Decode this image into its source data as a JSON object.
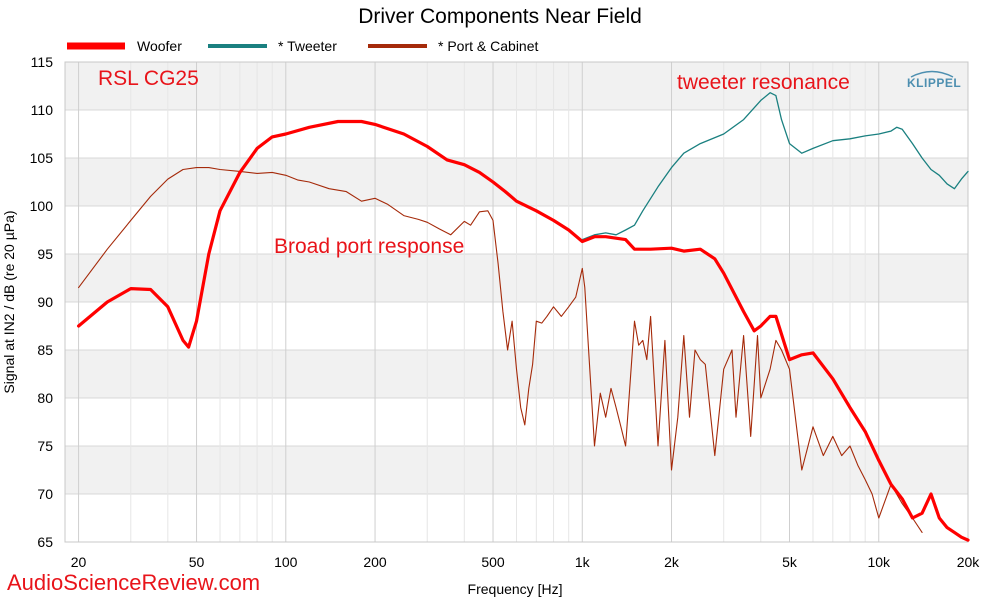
{
  "chart_data": {
    "type": "line",
    "title": "Driver Components Near Field",
    "xlabel": "Frequency [Hz]",
    "ylabel": "Signal at IN2 / dB (re 20 µPa)",
    "xscale": "log",
    "xlim": [
      18,
      20000
    ],
    "ylim": [
      65,
      115
    ],
    "grid": true,
    "legend_position": "top-left",
    "x_ticks": [
      20,
      50,
      100,
      200,
      500,
      1000,
      2000,
      5000,
      10000,
      20000
    ],
    "x_tick_labels": [
      "20",
      "50",
      "100",
      "200",
      "500",
      "1k",
      "2k",
      "5k",
      "10k",
      "20k"
    ],
    "y_ticks": [
      65,
      70,
      75,
      80,
      85,
      90,
      95,
      100,
      105,
      110,
      115
    ],
    "y_tick_labels": [
      "65",
      "70",
      "75",
      "80",
      "85",
      "90",
      "95",
      "100",
      "105",
      "110",
      "115"
    ],
    "series": [
      {
        "name": "Woofer",
        "color": "#ff0000",
        "x": [
          20,
          25,
          30,
          35,
          40,
          45,
          47,
          50,
          55,
          60,
          70,
          80,
          90,
          100,
          120,
          150,
          180,
          200,
          250,
          300,
          350,
          400,
          450,
          500,
          550,
          600,
          700,
          800,
          900,
          1000,
          1100,
          1200,
          1400,
          1500,
          1700,
          2000,
          2200,
          2500,
          2800,
          3000,
          3500,
          3800,
          4000,
          4300,
          4500,
          5000,
          5500,
          6000,
          7000,
          8000,
          9000,
          10000,
          11000,
          12000,
          13000,
          14000,
          15000,
          16000,
          17000,
          18000,
          19000,
          20000
        ],
        "y": [
          87.5,
          90.0,
          91.4,
          91.3,
          89.5,
          86.0,
          85.3,
          88.0,
          95.0,
          99.5,
          103.5,
          106.0,
          107.2,
          107.5,
          108.2,
          108.8,
          108.8,
          108.5,
          107.5,
          106.2,
          104.8,
          104.3,
          103.5,
          102.5,
          101.5,
          100.5,
          99.5,
          98.5,
          97.5,
          96.3,
          96.8,
          96.8,
          96.5,
          95.5,
          95.5,
          95.6,
          95.3,
          95.5,
          94.5,
          93.0,
          89.0,
          87.0,
          87.5,
          88.5,
          88.5,
          84.0,
          84.5,
          84.7,
          82.0,
          79.0,
          76.5,
          73.5,
          71.0,
          69.5,
          67.5,
          68.0,
          70.0,
          67.5,
          66.5,
          66.0,
          65.5,
          65.2
        ]
      },
      {
        "name": "* Tweeter",
        "color": "#1a8080",
        "x": [
          1000,
          1100,
          1200,
          1300,
          1400,
          1500,
          1600,
          1800,
          2000,
          2200,
          2500,
          3000,
          3500,
          4000,
          4300,
          4500,
          4700,
          5000,
          5500,
          6000,
          7000,
          8000,
          9000,
          10000,
          11000,
          11500,
          12000,
          13000,
          14000,
          15000,
          16000,
          17000,
          18000,
          19000,
          20000
        ],
        "y": [
          96.5,
          97.0,
          97.2,
          97.0,
          97.5,
          98.0,
          99.5,
          102.0,
          104.0,
          105.5,
          106.5,
          107.5,
          109.0,
          111.0,
          111.8,
          111.5,
          109.0,
          106.5,
          105.5,
          106.0,
          106.8,
          107.0,
          107.3,
          107.5,
          107.8,
          108.2,
          108.0,
          106.5,
          105.0,
          103.8,
          103.2,
          102.3,
          101.8,
          102.8,
          103.6
        ]
      },
      {
        "name": "* Port & Cabinet",
        "color": "#a52a0a",
        "x": [
          20,
          25,
          30,
          35,
          40,
          45,
          50,
          55,
          60,
          70,
          80,
          90,
          100,
          110,
          120,
          140,
          160,
          180,
          200,
          220,
          250,
          280,
          300,
          330,
          360,
          400,
          420,
          450,
          480,
          500,
          520,
          540,
          560,
          580,
          600,
          620,
          640,
          660,
          680,
          700,
          730,
          760,
          800,
          850,
          900,
          950,
          1000,
          1020,
          1050,
          1100,
          1150,
          1200,
          1250,
          1300,
          1350,
          1400,
          1500,
          1550,
          1600,
          1650,
          1700,
          1800,
          1900,
          2000,
          2100,
          2200,
          2300,
          2400,
          2500,
          2600,
          2800,
          3000,
          3200,
          3300,
          3500,
          3700,
          3900,
          4000,
          4300,
          4500,
          4700,
          5000,
          5500,
          6000,
          6500,
          7000,
          7500,
          8000,
          8500,
          9000,
          9500,
          10000,
          11000,
          12000,
          13000,
          14000
        ],
        "y": [
          91.5,
          95.5,
          98.5,
          101.0,
          102.8,
          103.8,
          104.0,
          104.0,
          103.8,
          103.6,
          103.4,
          103.5,
          103.2,
          102.7,
          102.5,
          101.8,
          101.5,
          100.5,
          100.8,
          100.2,
          99.0,
          98.6,
          98.3,
          97.6,
          97.0,
          98.4,
          98.0,
          99.4,
          99.5,
          98.5,
          94.0,
          89.0,
          85.0,
          88.0,
          83.0,
          79.0,
          77.2,
          81.0,
          83.5,
          88.0,
          87.8,
          88.5,
          89.5,
          88.5,
          89.5,
          90.5,
          93.5,
          91.5,
          85.0,
          75.0,
          80.5,
          78.0,
          81.0,
          79.0,
          77.0,
          75.0,
          88.0,
          85.5,
          86.0,
          84.0,
          88.5,
          75.0,
          86.0,
          72.5,
          78.0,
          86.5,
          78.0,
          85.0,
          84.0,
          83.5,
          74.0,
          83.0,
          85.0,
          78.0,
          86.5,
          76.0,
          86.5,
          80.0,
          83.0,
          86.0,
          85.0,
          83.0,
          72.5,
          77.0,
          74.0,
          76.0,
          74.0,
          75.0,
          73.0,
          71.5,
          70.0,
          67.5,
          71.0,
          69.0,
          67.5,
          66.0
        ]
      }
    ],
    "annotations": [
      "RSL CG25",
      "tweeter resonance",
      "Broad port response"
    ]
  },
  "branding": {
    "klippel": "KLIPPEL",
    "watermark": "AudioScienceReview.com"
  }
}
